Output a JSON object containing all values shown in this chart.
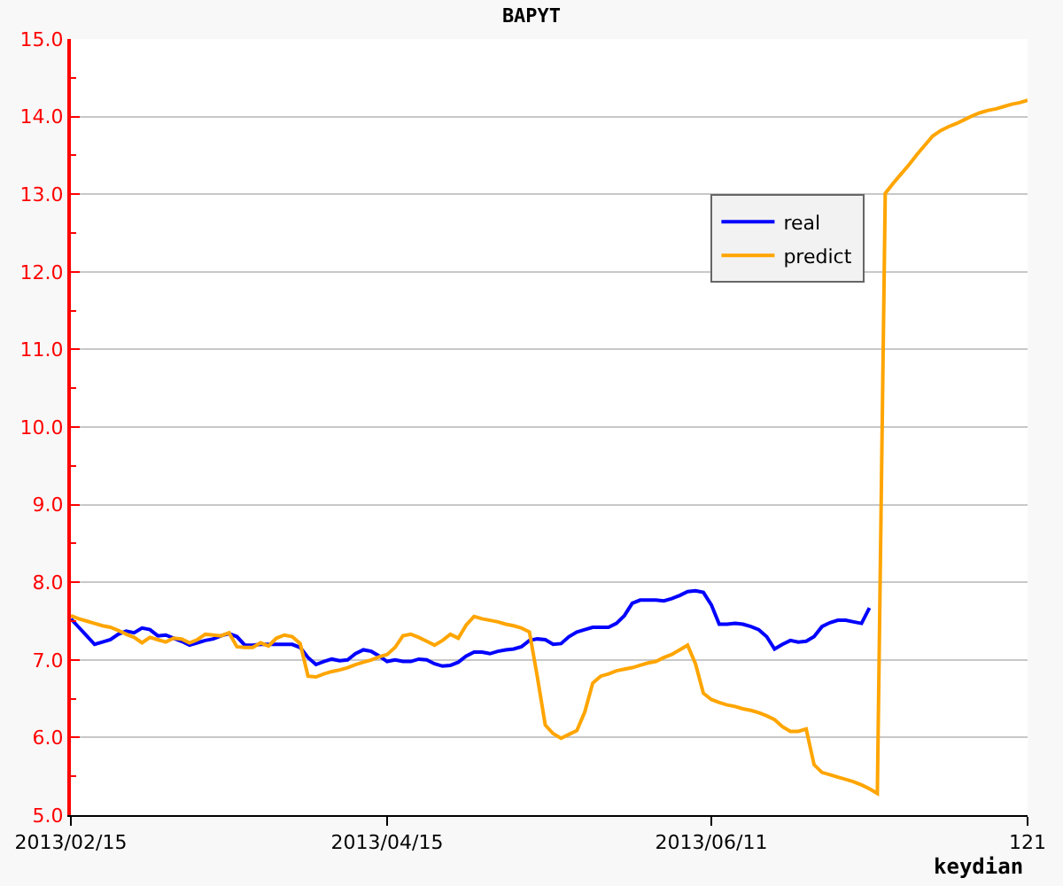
{
  "chart_data": {
    "type": "line",
    "title": "BAPYT",
    "xlabel": "keydian",
    "categories": [
      "2013/02/15",
      null,
      null,
      null,
      null,
      null,
      null,
      null,
      null,
      null,
      null,
      null,
      null,
      null,
      null,
      null,
      null,
      null,
      null,
      null,
      null,
      null,
      null,
      null,
      null,
      null,
      null,
      null,
      null,
      null,
      null,
      null,
      null,
      null,
      null,
      null,
      null,
      null,
      null,
      null,
      "2013/04/15",
      null,
      null,
      null,
      null,
      null,
      null,
      null,
      null,
      null,
      null,
      null,
      null,
      null,
      null,
      null,
      null,
      null,
      null,
      null,
      null,
      null,
      null,
      null,
      null,
      null,
      null,
      null,
      null,
      null,
      null,
      null,
      null,
      null,
      null,
      null,
      null,
      null,
      null,
      null,
      null,
      "2013/06/11",
      null,
      null,
      null,
      null,
      null,
      null,
      null,
      null,
      null,
      null,
      null,
      null,
      null,
      null,
      null,
      null,
      null,
      null,
      null,
      null,
      null,
      null,
      null,
      null,
      null,
      null,
      null,
      null,
      null,
      null,
      null,
      null,
      null,
      null,
      null,
      null,
      null,
      null,
      null,
      "121"
    ],
    "ylim": [
      5,
      15
    ],
    "yticks": [
      {
        "value": 5,
        "label": "5.0"
      },
      {
        "value": 6,
        "label": "6.0"
      },
      {
        "value": 7,
        "label": "7.0"
      },
      {
        "value": 8,
        "label": "8.0"
      },
      {
        "value": 9,
        "label": "9.0"
      },
      {
        "value": 10,
        "label": "10.0"
      },
      {
        "value": 11,
        "label": "11.0"
      },
      {
        "value": 12,
        "label": "12.0"
      },
      {
        "value": 13,
        "label": "13.0"
      },
      {
        "value": 14,
        "label": "14.0"
      },
      {
        "value": 15,
        "label": "15.0"
      }
    ],
    "grid": "y",
    "legend": "top right",
    "line_style": "solid",
    "series": [
      {
        "name": "real",
        "color": "#0000ff",
        "values": [
          7.53,
          7.42,
          7.31,
          7.2,
          7.23,
          7.26,
          7.33,
          7.37,
          7.35,
          7.41,
          7.39,
          7.31,
          7.32,
          7.28,
          7.24,
          7.19,
          7.22,
          7.25,
          7.27,
          7.31,
          7.34,
          7.3,
          7.19,
          7.19,
          7.2,
          7.2,
          7.2,
          7.2,
          7.2,
          7.16,
          7.03,
          6.94,
          6.98,
          7.01,
          6.99,
          7.0,
          7.08,
          7.13,
          7.11,
          7.05,
          6.98,
          7.0,
          6.98,
          6.98,
          7.01,
          7.0,
          6.95,
          6.92,
          6.93,
          6.97,
          7.05,
          7.1,
          7.1,
          7.08,
          7.11,
          7.13,
          7.14,
          7.17,
          7.25,
          7.27,
          7.26,
          7.2,
          7.21,
          7.3,
          7.36,
          7.39,
          7.42,
          7.42,
          7.42,
          7.47,
          7.57,
          7.73,
          7.77,
          7.77,
          7.77,
          7.76,
          7.79,
          7.83,
          7.88,
          7.89,
          7.87,
          7.71,
          7.46,
          7.46,
          7.47,
          7.46,
          7.43,
          7.39,
          7.3,
          7.14,
          7.2,
          7.25,
          7.23,
          7.24,
          7.3,
          7.43,
          7.48,
          7.51,
          7.51,
          7.49,
          7.47,
          7.67,
          null,
          null,
          null,
          null,
          null,
          null,
          null,
          null,
          null,
          null,
          null,
          null,
          null,
          null,
          null,
          null,
          null,
          null,
          null,
          null
        ]
      },
      {
        "name": "predict",
        "color": "#ffa500",
        "values": [
          7.57,
          7.53,
          7.5,
          7.47,
          7.44,
          7.42,
          7.38,
          7.33,
          7.29,
          7.22,
          7.29,
          7.26,
          7.23,
          7.28,
          7.27,
          7.22,
          7.26,
          7.33,
          7.32,
          7.31,
          7.35,
          7.17,
          7.16,
          7.16,
          7.22,
          7.18,
          7.28,
          7.32,
          7.3,
          7.21,
          6.79,
          6.78,
          6.82,
          6.85,
          6.87,
          6.9,
          6.94,
          6.97,
          7.0,
          7.04,
          7.07,
          7.16,
          7.31,
          7.33,
          7.29,
          7.24,
          7.19,
          7.25,
          7.33,
          7.28,
          7.45,
          7.56,
          7.53,
          7.51,
          7.49,
          7.46,
          7.44,
          7.41,
          7.36,
          6.78,
          6.16,
          6.05,
          5.99,
          6.04,
          6.09,
          6.33,
          6.7,
          6.79,
          6.82,
          6.86,
          6.88,
          6.9,
          6.93,
          6.96,
          6.98,
          7.03,
          7.07,
          7.13,
          7.19,
          6.95,
          6.57,
          6.49,
          6.45,
          6.42,
          6.4,
          6.37,
          6.35,
          6.32,
          6.28,
          6.23,
          6.14,
          6.08,
          6.08,
          6.11,
          5.65,
          5.55,
          5.52,
          5.49,
          5.46,
          5.43,
          5.39,
          5.34,
          5.28,
          13.01,
          13.14,
          13.26,
          13.38,
          13.51,
          13.63,
          13.75,
          13.82,
          13.87,
          13.91,
          13.96,
          14.01,
          14.05,
          14.08,
          14.1,
          14.13,
          14.16,
          14.18,
          14.21
        ]
      }
    ]
  }
}
